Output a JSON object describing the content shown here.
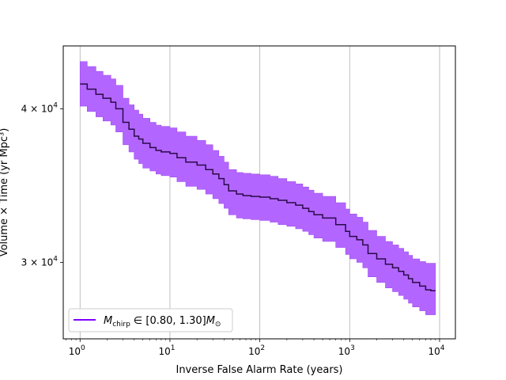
{
  "chart_data": {
    "type": "area",
    "title": "",
    "xlabel": "Inverse False Alarm Rate (years)",
    "ylabel": "Volume × Time (yr Mpc³)",
    "xscale": "log",
    "yscale": "log",
    "xlim": [
      0.65,
      15000
    ],
    "ylim": [
      26000,
      45000
    ],
    "x_ticks": [
      {
        "value": 1,
        "base": "10",
        "exp": "0"
      },
      {
        "value": 10,
        "base": "10",
        "exp": "1"
      },
      {
        "value": 100,
        "base": "10",
        "exp": "2"
      },
      {
        "value": 1000,
        "base": "10",
        "exp": "3"
      },
      {
        "value": 10000,
        "base": "10",
        "exp": "4"
      }
    ],
    "y_ticks": [
      {
        "value": 30000,
        "mantissa": "3",
        "times": "×",
        "base": "10",
        "exp": "4"
      },
      {
        "value": 40000,
        "mantissa": "4",
        "times": "×",
        "base": "10",
        "exp": "4"
      }
    ],
    "grid": "vertical major lines",
    "legend_position": "lower left",
    "legend": {
      "math_M": "M",
      "math_sub": "chirp",
      "math_in": " ∈ [0.80, 1.30]",
      "math_M2": "M",
      "math_sub2": "⊙"
    },
    "colors": {
      "line": "#2a0a4a",
      "band": "#b366ff",
      "band_edge": "#a04cf0",
      "legend_line": "#7f00ff",
      "grid": "#b0b0b0"
    },
    "series": [
      {
        "x": [
          1.0,
          1.2,
          1.5,
          1.8,
          2.2,
          2.5,
          3.0,
          3.5,
          4.0,
          4.5,
          5.0,
          6.0,
          7.0,
          8.0,
          10.0,
          12.0,
          15.0,
          20.0,
          25.0,
          30.0,
          35.0,
          40.0,
          45.0,
          55.0,
          65.0,
          80.0,
          100.0,
          130.0,
          160.0,
          200.0,
          250.0,
          300.0,
          350.0,
          400.0,
          500.0,
          700.0,
          900.0,
          1000.0,
          1200.0,
          1400.0,
          1600.0,
          2000.0,
          2500.0,
          3000.0,
          3500.0,
          4000.0,
          4500.0,
          5000.0,
          6000.0,
          7000.0,
          8000.0,
          9000.0
        ],
        "y": [
          41900,
          41500,
          41100,
          40800,
          40500,
          40000,
          39000,
          38500,
          38000,
          37800,
          37500,
          37200,
          37000,
          36900,
          36800,
          36500,
          36200,
          36000,
          35700,
          35400,
          35100,
          34700,
          34300,
          34100,
          34000,
          33950,
          33900,
          33800,
          33700,
          33550,
          33400,
          33200,
          33000,
          32800,
          32600,
          32200,
          31800,
          31500,
          31300,
          31000,
          30500,
          30200,
          29900,
          29700,
          29500,
          29300,
          29100,
          28900,
          28700,
          28500,
          28450,
          28450
        ],
        "y_upper": [
          43700,
          43300,
          42900,
          42600,
          42300,
          41800,
          40800,
          40300,
          39900,
          39600,
          39300,
          39000,
          38800,
          38700,
          38600,
          38300,
          38000,
          37700,
          37400,
          37000,
          36600,
          36200,
          35700,
          35500,
          35450,
          35400,
          35350,
          35250,
          35100,
          34900,
          34750,
          34550,
          34350,
          34150,
          33950,
          33550,
          33150,
          32850,
          32650,
          32350,
          31850,
          31500,
          31200,
          31000,
          30800,
          30600,
          30400,
          30200,
          30050,
          29950,
          29950,
          29950
        ],
        "y_lower": [
          40200,
          39800,
          39400,
          39100,
          38800,
          38300,
          37400,
          36900,
          36400,
          36100,
          35800,
          35600,
          35400,
          35300,
          35200,
          34900,
          34600,
          34400,
          34100,
          33800,
          33500,
          33200,
          32800,
          32600,
          32550,
          32500,
          32450,
          32350,
          32200,
          32100,
          31950,
          31800,
          31600,
          31400,
          31200,
          30850,
          30450,
          30200,
          30000,
          29700,
          29200,
          28900,
          28600,
          28400,
          28200,
          28000,
          27800,
          27600,
          27400,
          27200,
          27200,
          27200
        ]
      }
    ]
  }
}
